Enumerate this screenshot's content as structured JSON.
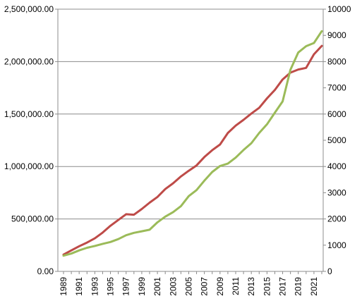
{
  "chart_data": {
    "type": "line",
    "title": "",
    "xlabel": "",
    "ylabel": "",
    "y2label": "",
    "grid": true,
    "legend": "none",
    "x": [
      1989,
      1990,
      1991,
      1992,
      1993,
      1994,
      1995,
      1996,
      1997,
      1998,
      1999,
      2000,
      2001,
      2002,
      2003,
      2004,
      2005,
      2006,
      2007,
      2008,
      2009,
      2010,
      2011,
      2012,
      2013,
      2014,
      2015,
      2016,
      2017,
      2018,
      2019,
      2020,
      2021,
      2022
    ],
    "x_tick_labels": [
      "1989",
      "1991",
      "1993",
      "1995",
      "1997",
      "1999",
      "2001",
      "2003",
      "2005",
      "2007",
      "2009",
      "2011",
      "2013",
      "2015",
      "2017",
      "2019",
      "2021"
    ],
    "y_left": {
      "range": [
        0,
        2500000
      ],
      "tick_labels": [
        "0.00",
        "500,000.00",
        "1,000,000.00",
        "1,500,000.00",
        "2,000,000.00",
        "2,500,000.00"
      ]
    },
    "y_right": {
      "range": [
        0,
        10000
      ],
      "tick_labels": [
        "0",
        "1000",
        "2000",
        "3000",
        "4000",
        "5000",
        "6000",
        "7000",
        "8000",
        "9000",
        "10000"
      ]
    },
    "series": [
      {
        "axis": "left",
        "color": "#be4b48",
        "values": [
          160000,
          200000,
          240000,
          275000,
          315000,
          370000,
          435000,
          490000,
          545000,
          540000,
          595000,
          655000,
          710000,
          785000,
          840000,
          905000,
          960000,
          1010000,
          1090000,
          1155000,
          1210000,
          1320000,
          1390000,
          1445000,
          1505000,
          1560000,
          1650000,
          1730000,
          1830000,
          1895000,
          1925000,
          1940000,
          2070000,
          2150000
        ]
      },
      {
        "axis": "right",
        "color": "#9bbb59",
        "values": [
          600,
          680,
          800,
          900,
          970,
          1050,
          1120,
          1230,
          1380,
          1470,
          1530,
          1590,
          1870,
          2090,
          2260,
          2490,
          2870,
          3100,
          3460,
          3790,
          4020,
          4110,
          4340,
          4630,
          4890,
          5280,
          5610,
          6050,
          6480,
          7690,
          8350,
          8590,
          8710,
          9160
        ]
      }
    ]
  }
}
